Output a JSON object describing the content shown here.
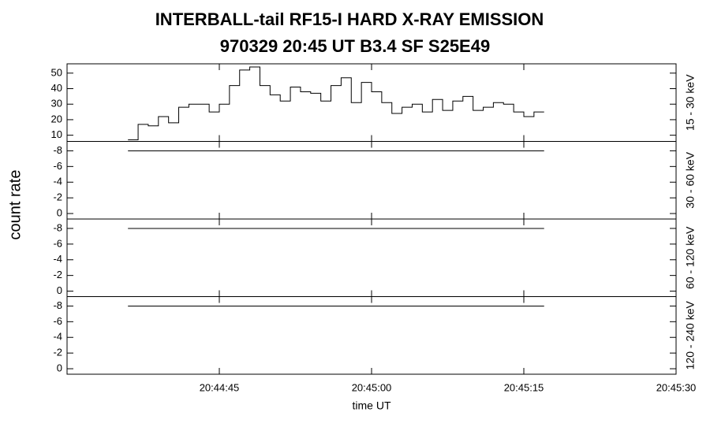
{
  "figure": {
    "title": [
      "INTERBALL-tail  RF15-I  HARD  X-RAY  EMISSION",
      "970329     20:45 UT     B3.4   SF   S25E49"
    ],
    "ylabel": "count rate",
    "xlabel": "time UT"
  },
  "chart_data": [
    {
      "type": "line",
      "drawstyle": "steps",
      "label": "15 - 30 keV",
      "ylim": [
        6,
        56
      ],
      "yticks": [
        10,
        20,
        30,
        40,
        50
      ],
      "series": [
        {
          "color": "#000000",
          "x": [
            74676,
            74677,
            74678,
            74679,
            74680,
            74681,
            74682,
            74683,
            74684,
            74685,
            74686,
            74687,
            74688,
            74689,
            74690,
            74691,
            74692,
            74693,
            74694,
            74695,
            74696,
            74697,
            74698,
            74699,
            74700,
            74701,
            74702,
            74703,
            74704,
            74705,
            74706,
            74707,
            74708,
            74709,
            74710,
            74711,
            74712,
            74713,
            74714,
            74715,
            74716
          ],
          "values": [
            7,
            17,
            16,
            22,
            18,
            28,
            30,
            30,
            25,
            30,
            42,
            52,
            54,
            42,
            36,
            32,
            41,
            38,
            37,
            32,
            42,
            47,
            31,
            44,
            38,
            31,
            24,
            28,
            30,
            25,
            33,
            26,
            32,
            35,
            26,
            28,
            31,
            30,
            25,
            22,
            25
          ]
        }
      ]
    },
    {
      "type": "line",
      "label": "30 - 60 keV",
      "ylim": [
        0.7,
        -9.2
      ],
      "yticks": [
        0,
        -2,
        -4,
        -6,
        -8
      ],
      "series": [
        {
          "color": "#000000",
          "x": [
            74676,
            74717
          ],
          "values": [
            -8,
            -8
          ]
        }
      ]
    },
    {
      "type": "line",
      "label": "60 - 120 keV",
      "ylim": [
        0.7,
        -9.2
      ],
      "yticks": [
        0,
        -2,
        -4,
        -6,
        -8
      ],
      "series": [
        {
          "color": "#000000",
          "x": [
            74676,
            74717
          ],
          "values": [
            -8,
            -8
          ]
        }
      ]
    },
    {
      "type": "line",
      "label": "120 - 240 keV",
      "ylim": [
        0.7,
        -9.2
      ],
      "yticks": [
        0,
        -2,
        -4,
        -6,
        -8
      ],
      "series": [
        {
          "color": "#000000",
          "x": [
            74676,
            74717
          ],
          "values": [
            -8,
            -8
          ]
        }
      ],
      "xlim": [
        74670,
        74730
      ],
      "xticks": [
        {
          "value": 74685,
          "label": "20:44:45"
        },
        {
          "value": 74700,
          "label": "20:45:00"
        },
        {
          "value": 74715,
          "label": "20:45:15"
        },
        {
          "value": 74730,
          "label": "20:45:30"
        }
      ]
    }
  ]
}
